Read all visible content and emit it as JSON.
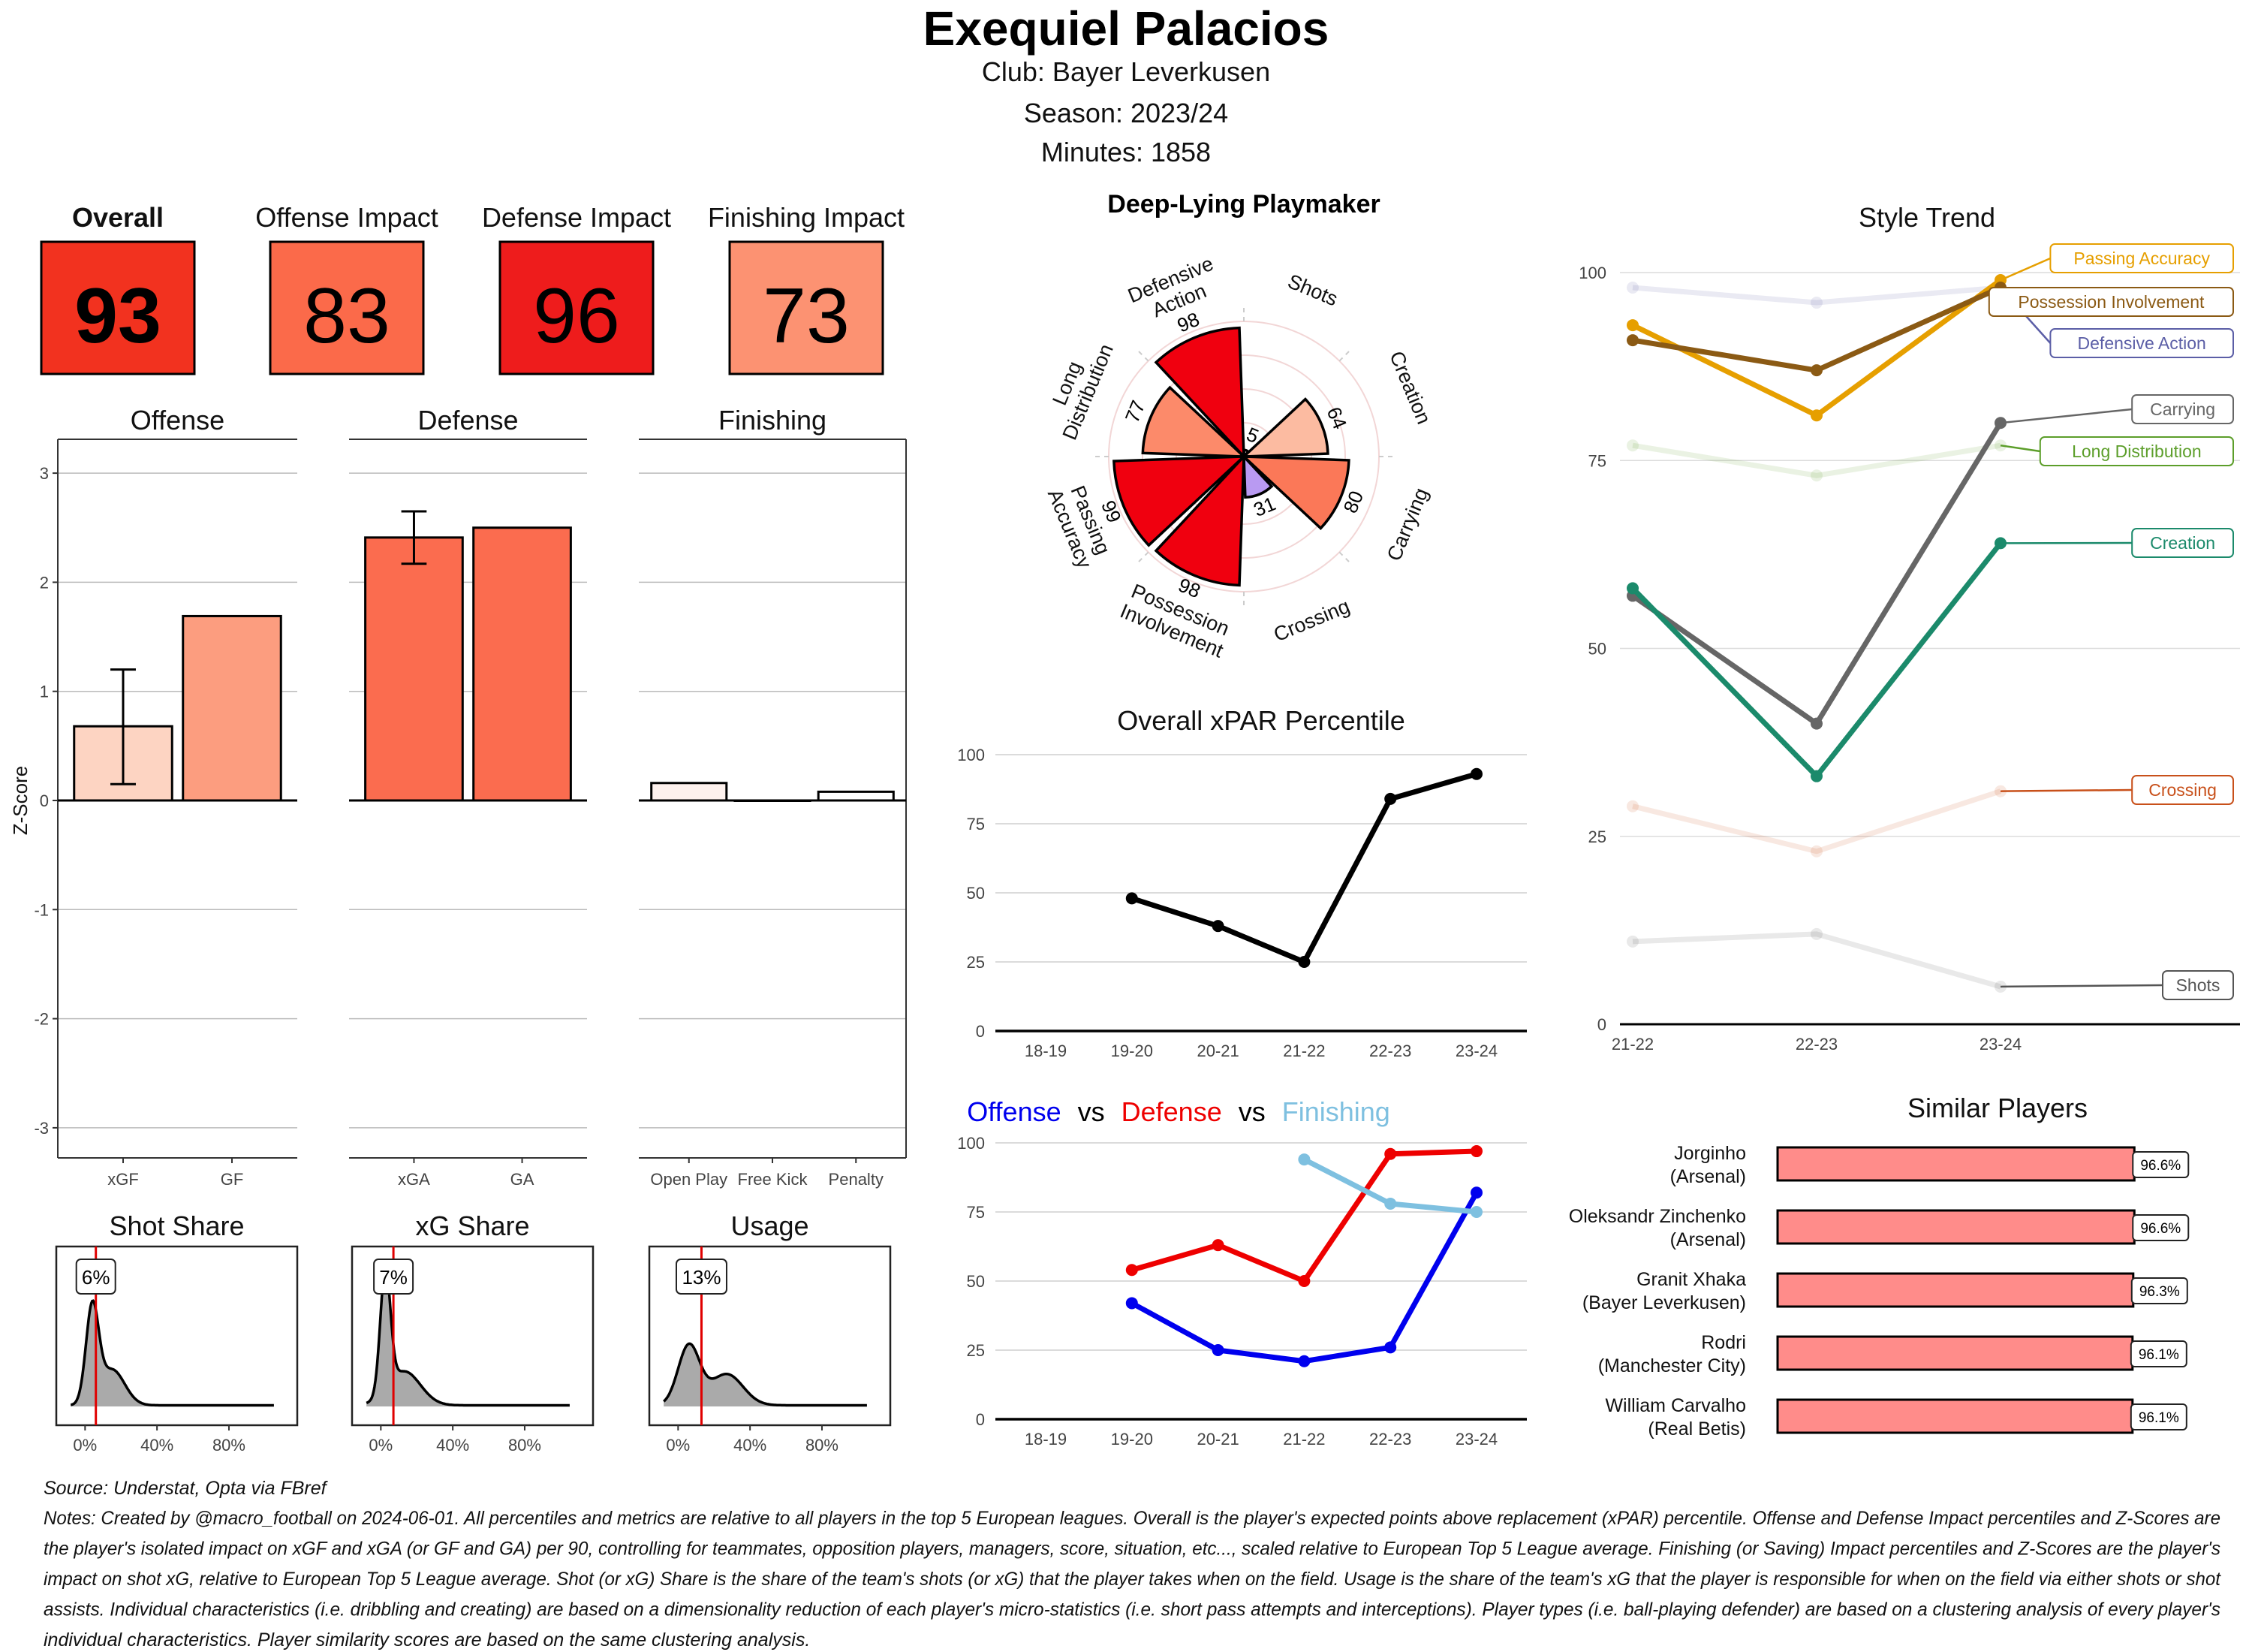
{
  "header": {
    "title": "Exequiel Palacios",
    "club": "Club:  Bayer Leverkusen",
    "season": "Season:  2023/24",
    "minutes": "Minutes:  1858"
  },
  "scores": [
    {
      "label": "Overall",
      "value": "93",
      "color": "#f2321f"
    },
    {
      "label": "Offense Impact",
      "value": "83",
      "color": "#fb6a4a"
    },
    {
      "label": "Defense Impact",
      "value": "96",
      "color": "#ee1c1c"
    },
    {
      "label": "Finishing Impact",
      "value": "73",
      "color": "#fc9272"
    }
  ],
  "chart_data": [
    {
      "type": "bar",
      "ylabel": "Z-Score",
      "ylim": [
        -3.3,
        3.3
      ],
      "yticks": [
        -3,
        -2,
        -1,
        0,
        1,
        2,
        3
      ],
      "grid": true,
      "panels": [
        {
          "title": "Offense",
          "categories": [
            "xGF",
            "GF"
          ],
          "values": [
            0.68,
            1.69
          ],
          "error": [
            [
              0.15,
              1.2
            ],
            null
          ],
          "colors": [
            "#fdd4c2",
            "#fc9d7f"
          ]
        },
        {
          "title": "Defense",
          "categories": [
            "xGA",
            "GA"
          ],
          "values": [
            2.41,
            2.5
          ],
          "error": [
            [
              2.17,
              2.65
            ],
            null
          ],
          "colors": [
            "#fb6c4f",
            "#fb6c4f"
          ]
        },
        {
          "title": "Finishing",
          "categories": [
            "Open Play",
            "Free Kick",
            "Penalty"
          ],
          "values": [
            0.16,
            0.0,
            0.08
          ],
          "error": [
            null,
            null,
            null
          ],
          "colors": [
            "#fdf1ed",
            "#ffffff",
            "#ffffff"
          ]
        }
      ]
    },
    {
      "type": "area",
      "xlim": [
        -16,
        118
      ],
      "xticks": [
        0,
        40,
        80
      ],
      "xtick_labels": [
        "0%",
        "40%",
        "80%"
      ],
      "marker_color": "#e00000",
      "panels": [
        {
          "title": "Shot Share",
          "value": 6,
          "label": "6%"
        },
        {
          "title": "xG Share",
          "value": 7,
          "label": "7%"
        },
        {
          "title": "Usage",
          "value": 13,
          "label": "13%"
        }
      ]
    },
    {
      "type": "polar-bar",
      "title": "Deep-Lying Playmaker",
      "rlim": [
        0,
        100
      ],
      "category_labels": [
        [
          "Shots"
        ],
        [
          "Creation"
        ],
        [
          "Carrying"
        ],
        [
          "Crossing"
        ],
        [
          "Possession",
          "Involvement"
        ],
        [
          "Passing",
          "Accuracy"
        ],
        [
          "Long",
          "Distribution"
        ],
        [
          "Defensive",
          "Action"
        ]
      ],
      "values": [
        5,
        64,
        80,
        31,
        98,
        99,
        77,
        98
      ],
      "colors": [
        "#fdeee8",
        "#fcbba1",
        "#fb7858",
        "#b99af2",
        "#f0000f",
        "#f0000f",
        "#fc8a6a",
        "#f0000f"
      ]
    },
    {
      "type": "line",
      "title": "Overall xPAR Percentile",
      "categories": [
        "18-19",
        "19-20",
        "20-21",
        "21-22",
        "22-23",
        "23-24"
      ],
      "values": [
        null,
        48,
        38,
        25,
        84,
        93
      ],
      "ylim": [
        0,
        100
      ],
      "yticks": [
        0,
        25,
        50,
        75,
        100
      ],
      "color": "#000000"
    },
    {
      "type": "line",
      "title_parts": [
        {
          "text": "Offense",
          "color": "#0000ee"
        },
        {
          "text": "vs",
          "color": "#000000"
        },
        {
          "text": "Defense",
          "color": "#ee0000"
        },
        {
          "text": "vs",
          "color": "#000000"
        },
        {
          "text": "Finishing",
          "color": "#7ec0e0"
        }
      ],
      "categories": [
        "18-19",
        "19-20",
        "20-21",
        "21-22",
        "22-23",
        "23-24"
      ],
      "ylim": [
        0,
        100
      ],
      "yticks": [
        0,
        25,
        50,
        75,
        100
      ],
      "series": [
        {
          "name": "Offense",
          "color": "#0000ee",
          "values": [
            null,
            42,
            25,
            21,
            26,
            82
          ]
        },
        {
          "name": "Defense",
          "color": "#ee0000",
          "values": [
            null,
            54,
            63,
            50,
            96,
            97
          ]
        },
        {
          "name": "Finishing",
          "color": "#7ec0e0",
          "values": [
            null,
            null,
            null,
            94,
            78,
            75
          ]
        }
      ]
    },
    {
      "type": "line",
      "title": "Style Trend",
      "categories": [
        "21-22",
        "22-23",
        "23-24"
      ],
      "ylim": [
        0,
        100
      ],
      "yticks": [
        0,
        25,
        50,
        75,
        100
      ],
      "series": [
        {
          "name": "Defensive Action",
          "color": "#5b5ea6",
          "faded": true,
          "values": [
            98,
            96,
            98
          ]
        },
        {
          "name": "Long Distribution",
          "color": "#5c9e2a",
          "faded": true,
          "values": [
            77,
            73,
            77
          ]
        },
        {
          "name": "Crossing",
          "color": "#c8501a",
          "faded": true,
          "values": [
            29,
            23,
            31
          ]
        },
        {
          "name": "Shots",
          "color": "#555555",
          "faded": true,
          "values": [
            11,
            12,
            5
          ]
        },
        {
          "name": "Passing Accuracy",
          "color": "#e69f00",
          "faded": false,
          "values": [
            93,
            81,
            99
          ]
        },
        {
          "name": "Possession Involvement",
          "color": "#8b5a14",
          "faded": false,
          "values": [
            91,
            87,
            98
          ]
        },
        {
          "name": "Carrying",
          "color": "#666666",
          "faded": false,
          "values": [
            57,
            40,
            80
          ]
        },
        {
          "name": "Creation",
          "color": "#1b8a6b",
          "faded": false,
          "values": [
            58,
            33,
            64
          ]
        }
      ]
    },
    {
      "type": "bar",
      "orientation": "horizontal",
      "title": "Similar Players",
      "xlim": [
        0,
        100
      ],
      "color": "#ff8c8a",
      "players": [
        {
          "name": "Jorginho",
          "club": "(Arsenal)",
          "value": 96.6,
          "label": "96.6%"
        },
        {
          "name": "Oleksandr Zinchenko",
          "club": "(Arsenal)",
          "value": 96.6,
          "label": "96.6%"
        },
        {
          "name": "Granit Xhaka",
          "club": "(Bayer Leverkusen)",
          "value": 96.3,
          "label": "96.3%"
        },
        {
          "name": "Rodri",
          "club": "(Manchester City)",
          "value": 96.1,
          "label": "96.1%"
        },
        {
          "name": "William Carvalho",
          "club": "(Real Betis)",
          "value": 96.1,
          "label": "96.1%"
        }
      ]
    }
  ],
  "footer": {
    "source": "Source: Understat, Opta via FBref",
    "notes_lines": [
      "Notes: Created by @macro_football on 2024-06-01. All percentiles and metrics are relative to all players in the top 5 European leagues. Overall is the player's expected points above replacement (xPAR) percentile. Offense and Defense Impact percentiles and Z-Scores are",
      "the player's isolated impact on xGF and xGA (or GF and GA) per 90, controlling for teammates, opposition players, managers, score, situation, etc..., scaled relative to European Top 5 League average. Finishing (or Saving) Impact percentiles and Z-Scores are the player's",
      "impact on shot xG, relative to European Top 5 League average. Shot (or xG) Share is the share of the team's shots (or xG) that the player takes when on the field. Usage is the share of the team's xG that the player is responsible for when on the field via either shots or shot",
      "assists. Individual characteristics (i.e. dribbling and creating) are based on a dimensionality reduction of each player's micro-statistics (i.e. short pass attempts and interceptions). Player types (i.e. ball-playing defender) are based on a clustering analysis of every player's",
      "individual characteristics. Player similarity scores are based on the same clustering analysis."
    ]
  }
}
